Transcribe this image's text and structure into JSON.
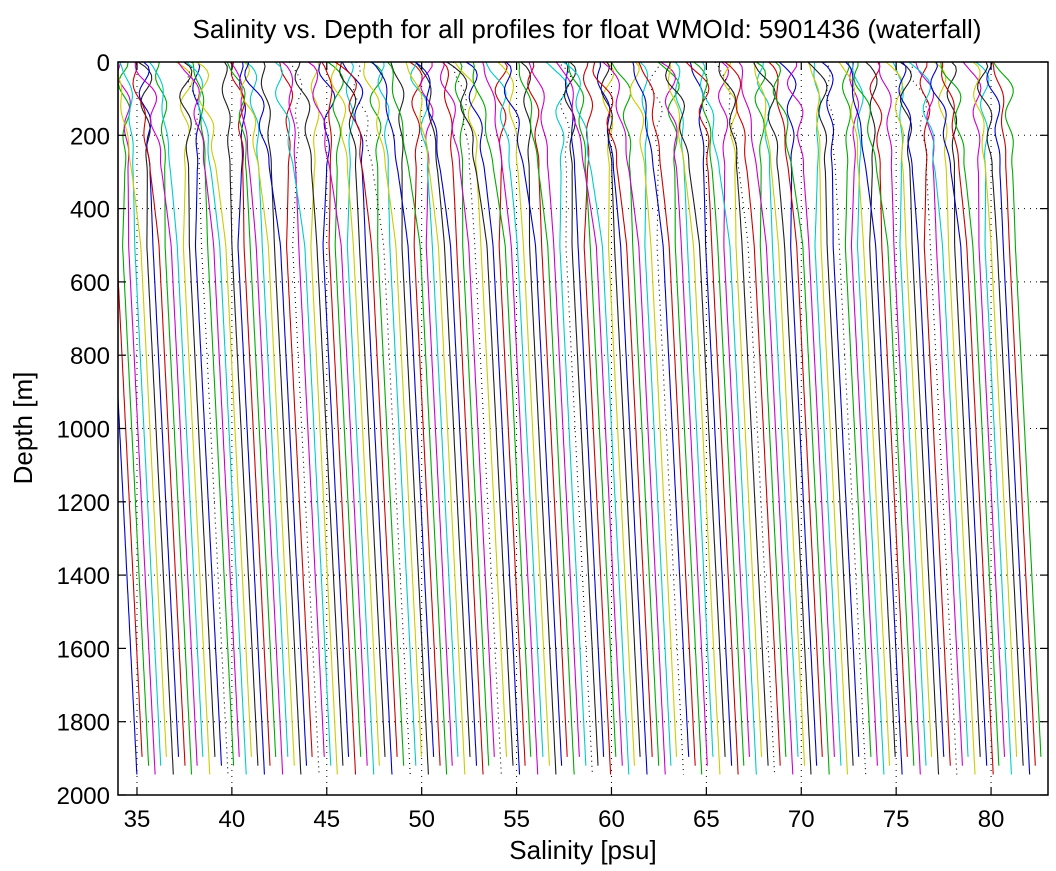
{
  "chart_data": {
    "type": "line",
    "title": "Salinity vs. Depth for all profiles for float WMOId: 5901436 (waterfall)",
    "xlabel": "Salinity [psu]",
    "ylabel": "Depth [m]",
    "xlim": [
      34,
      83
    ],
    "ylim": [
      0,
      2000
    ],
    "y_reversed": true,
    "grid": true,
    "legend": "none",
    "xticks": [
      "35",
      "40",
      "45",
      "50",
      "55",
      "60",
      "65",
      "70",
      "75",
      "80"
    ],
    "yticks": [
      "0",
      "200",
      "400",
      "600",
      "800",
      "1000",
      "1200",
      "1400",
      "1600",
      "1800",
      "2000"
    ],
    "waterfall": {
      "profile_count": 150,
      "first_profile_deep_salinity": 35.0,
      "offset_per_profile_psu": 0.32,
      "deep_level_m": 1950,
      "mid_level_m": 500,
      "mid_level_anomaly_psu": -1.4,
      "surface_level_m": 0,
      "surface_anomaly_psu": -2.3,
      "surface_variability_psu": 1.0
    },
    "series_colors": [
      "#0000cc",
      "#cc0000",
      "#00aa00",
      "#cc00cc",
      "#00cccc",
      "#cccc00",
      "#202020"
    ]
  }
}
